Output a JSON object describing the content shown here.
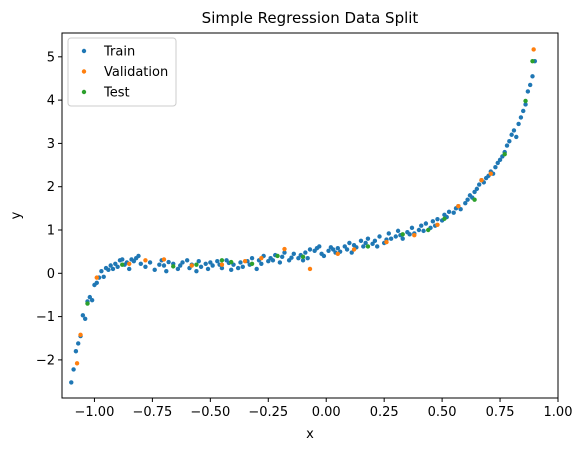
{
  "chart_data": {
    "type": "scatter",
    "title": "Simple Regression Data Split",
    "xlabel": "x",
    "ylabel": "y",
    "xlim": [
      -1.14,
      1.0
    ],
    "ylim": [
      -2.88,
      5.55
    ],
    "xticks": [
      -1.0,
      -0.75,
      -0.5,
      -0.25,
      0.0,
      0.25,
      0.5,
      0.75,
      1.0
    ],
    "xtick_labels": [
      "−1.00",
      "−0.75",
      "−0.50",
      "−0.25",
      "0.00",
      "0.25",
      "0.50",
      "0.75",
      "1.00"
    ],
    "yticks": [
      -2,
      -1,
      0,
      1,
      2,
      3,
      4,
      5
    ],
    "ytick_labels": [
      "−2",
      "−1",
      "0",
      "1",
      "2",
      "3",
      "4",
      "5"
    ],
    "grid": false,
    "legend_position": "top-left",
    "series": [
      {
        "name": "Train",
        "color": "#1f77b4",
        "points": [
          [
            -1.1,
            -2.52
          ],
          [
            -1.09,
            -2.22
          ],
          [
            -1.08,
            -1.8
          ],
          [
            -1.07,
            -1.62
          ],
          [
            -1.06,
            -1.45
          ],
          [
            -1.05,
            -0.97
          ],
          [
            -1.04,
            -1.05
          ],
          [
            -1.03,
            -0.65
          ],
          [
            -1.02,
            -0.55
          ],
          [
            -1.01,
            -0.62
          ],
          [
            -1.0,
            -0.27
          ],
          [
            -0.99,
            -0.22
          ],
          [
            -0.98,
            -0.1
          ],
          [
            -0.97,
            0.05
          ],
          [
            -0.96,
            -0.08
          ],
          [
            -0.95,
            0.12
          ],
          [
            -0.94,
            0.08
          ],
          [
            -0.93,
            0.18
          ],
          [
            -0.92,
            0.1
          ],
          [
            -0.91,
            0.22
          ],
          [
            -0.9,
            0.15
          ],
          [
            -0.89,
            0.3
          ],
          [
            -0.88,
            0.32
          ],
          [
            -0.87,
            0.2
          ],
          [
            -0.86,
            0.25
          ],
          [
            -0.85,
            0.1
          ],
          [
            -0.84,
            0.32
          ],
          [
            -0.83,
            0.28
          ],
          [
            -0.82,
            0.35
          ],
          [
            -0.81,
            0.4
          ],
          [
            -0.8,
            0.22
          ],
          [
            -0.78,
            0.15
          ],
          [
            -0.76,
            0.25
          ],
          [
            -0.74,
            0.08
          ],
          [
            -0.72,
            0.2
          ],
          [
            -0.71,
            0.3
          ],
          [
            -0.7,
            0.18
          ],
          [
            -0.69,
            0.05
          ],
          [
            -0.68,
            0.26
          ],
          [
            -0.66,
            0.22
          ],
          [
            -0.64,
            0.1
          ],
          [
            -0.63,
            0.18
          ],
          [
            -0.62,
            0.25
          ],
          [
            -0.6,
            0.3
          ],
          [
            -0.59,
            0.12
          ],
          [
            -0.58,
            0.2
          ],
          [
            -0.56,
            0.05
          ],
          [
            -0.55,
            0.28
          ],
          [
            -0.54,
            0.15
          ],
          [
            -0.52,
            0.22
          ],
          [
            -0.51,
            0.1
          ],
          [
            -0.5,
            0.25
          ],
          [
            -0.49,
            0.18
          ],
          [
            -0.47,
            0.28
          ],
          [
            -0.46,
            0.2
          ],
          [
            -0.45,
            0.12
          ],
          [
            -0.43,
            0.3
          ],
          [
            -0.42,
            0.24
          ],
          [
            -0.41,
            0.08
          ],
          [
            -0.4,
            0.2
          ],
          [
            -0.38,
            0.12
          ],
          [
            -0.37,
            0.25
          ],
          [
            -0.36,
            0.15
          ],
          [
            -0.34,
            0.28
          ],
          [
            -0.33,
            0.2
          ],
          [
            -0.32,
            0.35
          ],
          [
            -0.3,
            0.1
          ],
          [
            -0.29,
            0.3
          ],
          [
            -0.28,
            0.22
          ],
          [
            -0.27,
            0.4
          ],
          [
            -0.25,
            0.28
          ],
          [
            -0.24,
            0.35
          ],
          [
            -0.23,
            0.3
          ],
          [
            -0.22,
            0.42
          ],
          [
            -0.2,
            0.25
          ],
          [
            -0.19,
            0.38
          ],
          [
            -0.18,
            0.48
          ],
          [
            -0.16,
            0.3
          ],
          [
            -0.15,
            0.36
          ],
          [
            -0.14,
            0.45
          ],
          [
            -0.12,
            0.35
          ],
          [
            -0.11,
            0.42
          ],
          [
            -0.1,
            0.3
          ],
          [
            -0.09,
            0.48
          ],
          [
            -0.08,
            0.35
          ],
          [
            -0.07,
            0.55
          ],
          [
            -0.05,
            0.52
          ],
          [
            -0.04,
            0.58
          ],
          [
            -0.03,
            0.62
          ],
          [
            -0.02,
            0.45
          ],
          [
            -0.01,
            0.4
          ],
          [
            0.01,
            0.52
          ],
          [
            0.02,
            0.6
          ],
          [
            0.03,
            0.55
          ],
          [
            0.04,
            0.48
          ],
          [
            0.05,
            0.58
          ],
          [
            0.06,
            0.5
          ],
          [
            0.08,
            0.62
          ],
          [
            0.09,
            0.55
          ],
          [
            0.1,
            0.7
          ],
          [
            0.11,
            0.48
          ],
          [
            0.12,
            0.65
          ],
          [
            0.13,
            0.6
          ],
          [
            0.15,
            0.75
          ],
          [
            0.16,
            0.62
          ],
          [
            0.17,
            0.7
          ],
          [
            0.18,
            0.8
          ],
          [
            0.2,
            0.68
          ],
          [
            0.21,
            0.75
          ],
          [
            0.22,
            0.62
          ],
          [
            0.23,
            0.85
          ],
          [
            0.25,
            0.7
          ],
          [
            0.26,
            0.78
          ],
          [
            0.27,
            0.92
          ],
          [
            0.28,
            0.8
          ],
          [
            0.3,
            0.85
          ],
          [
            0.31,
            0.98
          ],
          [
            0.32,
            0.88
          ],
          [
            0.33,
            0.8
          ],
          [
            0.35,
            0.95
          ],
          [
            0.36,
            0.9
          ],
          [
            0.37,
            1.05
          ],
          [
            0.38,
            0.92
          ],
          [
            0.4,
            1.0
          ],
          [
            0.41,
            1.1
          ],
          [
            0.42,
            0.98
          ],
          [
            0.43,
            1.15
          ],
          [
            0.45,
            1.05
          ],
          [
            0.46,
            1.2
          ],
          [
            0.47,
            1.1
          ],
          [
            0.48,
            1.25
          ],
          [
            0.5,
            1.22
          ],
          [
            0.51,
            1.35
          ],
          [
            0.52,
            1.3
          ],
          [
            0.53,
            1.42
          ],
          [
            0.55,
            1.4
          ],
          [
            0.56,
            1.5
          ],
          [
            0.57,
            1.55
          ],
          [
            0.58,
            1.48
          ],
          [
            0.6,
            1.62
          ],
          [
            0.61,
            1.7
          ],
          [
            0.62,
            1.8
          ],
          [
            0.63,
            1.75
          ],
          [
            0.64,
            1.88
          ],
          [
            0.65,
            1.95
          ],
          [
            0.66,
            2.05
          ],
          [
            0.67,
            2.15
          ],
          [
            0.68,
            2.1
          ],
          [
            0.69,
            2.2
          ],
          [
            0.7,
            2.25
          ],
          [
            0.71,
            2.35
          ],
          [
            0.72,
            2.3
          ],
          [
            0.73,
            2.45
          ],
          [
            0.74,
            2.55
          ],
          [
            0.75,
            2.62
          ],
          [
            0.76,
            2.7
          ],
          [
            0.77,
            2.8
          ],
          [
            0.78,
            2.95
          ],
          [
            0.79,
            3.05
          ],
          [
            0.8,
            3.2
          ],
          [
            0.81,
            3.3
          ],
          [
            0.82,
            3.15
          ],
          [
            0.83,
            3.45
          ],
          [
            0.84,
            3.6
          ],
          [
            0.85,
            3.75
          ],
          [
            0.86,
            3.9
          ],
          [
            0.87,
            4.2
          ],
          [
            0.88,
            4.35
          ],
          [
            0.89,
            4.55
          ],
          [
            0.9,
            4.9
          ]
        ]
      },
      {
        "name": "Validation",
        "color": "#ff7f0e",
        "points": [
          [
            -1.075,
            -2.08
          ],
          [
            -1.06,
            -1.42
          ],
          [
            -0.99,
            -0.1
          ],
          [
            -0.85,
            0.22
          ],
          [
            -0.78,
            0.3
          ],
          [
            -0.7,
            0.32
          ],
          [
            -0.58,
            0.18
          ],
          [
            -0.45,
            0.2
          ],
          [
            -0.35,
            0.28
          ],
          [
            -0.28,
            0.35
          ],
          [
            -0.18,
            0.56
          ],
          [
            -0.07,
            0.1
          ],
          [
            0.05,
            0.45
          ],
          [
            0.12,
            0.55
          ],
          [
            0.26,
            0.72
          ],
          [
            0.38,
            0.88
          ],
          [
            0.48,
            1.12
          ],
          [
            0.57,
            1.55
          ],
          [
            0.67,
            2.15
          ],
          [
            0.71,
            2.3
          ],
          [
            0.895,
            5.17
          ]
        ]
      },
      {
        "name": "Test",
        "color": "#2ca02c",
        "points": [
          [
            -1.03,
            -0.7
          ],
          [
            -0.88,
            0.2
          ],
          [
            -0.66,
            0.16
          ],
          [
            -0.56,
            0.2
          ],
          [
            -0.45,
            0.3
          ],
          [
            -0.41,
            0.26
          ],
          [
            -0.32,
            0.22
          ],
          [
            -0.21,
            0.4
          ],
          [
            -0.1,
            0.38
          ],
          [
            0.18,
            0.62
          ],
          [
            0.33,
            0.9
          ],
          [
            0.44,
            1.0
          ],
          [
            0.51,
            1.26
          ],
          [
            0.64,
            1.7
          ],
          [
            0.77,
            2.75
          ],
          [
            0.86,
            3.98
          ],
          [
            0.89,
            4.9
          ]
        ]
      }
    ]
  }
}
